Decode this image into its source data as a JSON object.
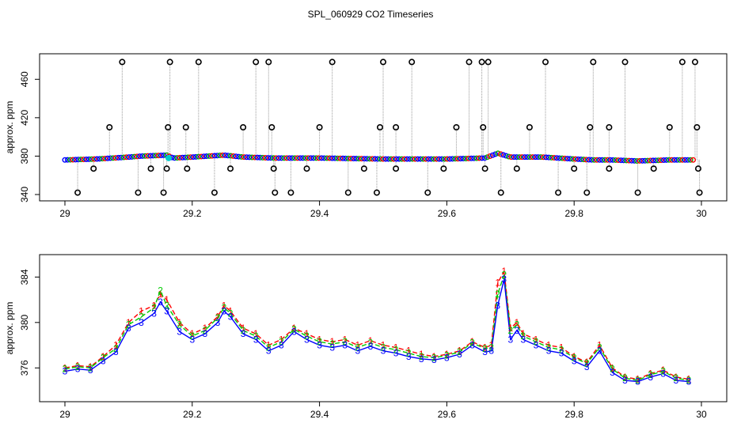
{
  "title": "SPL_060929  CO2 Timeseries",
  "chart_data": [
    {
      "type": "scatter",
      "title": "",
      "xlabel": "",
      "ylabel": "approx. ppm",
      "xlim": [
        29.0,
        30.0
      ],
      "ylim": [
        340,
        480
      ],
      "xticks": [
        29.0,
        29.2,
        29.4,
        29.6,
        29.8,
        30.0
      ],
      "yticks": [
        340,
        380,
        420,
        460
      ],
      "grid": false,
      "legend": "none",
      "baseline": {
        "x": [
          29.0,
          29.05,
          29.1,
          29.12,
          29.16,
          29.17,
          29.2,
          29.25,
          29.28,
          29.33,
          29.4,
          29.5,
          29.6,
          29.66,
          29.68,
          29.7,
          29.75,
          29.8,
          29.83,
          29.86,
          29.9,
          29.95,
          29.99
        ],
        "y": [
          376,
          377,
          379,
          380,
          381,
          378,
          379,
          381,
          379,
          378,
          378,
          377,
          377,
          378,
          383,
          379,
          379,
          377,
          376,
          376,
          375,
          376,
          376
        ]
      },
      "spikes": [
        {
          "x": 29.02,
          "y": 342
        },
        {
          "x": 29.045,
          "y": 367
        },
        {
          "x": 29.07,
          "y": 410
        },
        {
          "x": 29.09,
          "y": 478
        },
        {
          "x": 29.115,
          "y": 342
        },
        {
          "x": 29.135,
          "y": 367
        },
        {
          "x": 29.155,
          "y": 342
        },
        {
          "x": 29.16,
          "y": 367
        },
        {
          "x": 29.162,
          "y": 410
        },
        {
          "x": 29.165,
          "y": 478
        },
        {
          "x": 29.19,
          "y": 410
        },
        {
          "x": 29.192,
          "y": 367
        },
        {
          "x": 29.21,
          "y": 478
        },
        {
          "x": 29.235,
          "y": 342
        },
        {
          "x": 29.26,
          "y": 367
        },
        {
          "x": 29.28,
          "y": 410
        },
        {
          "x": 29.3,
          "y": 478
        },
        {
          "x": 29.32,
          "y": 478
        },
        {
          "x": 29.325,
          "y": 410
        },
        {
          "x": 29.328,
          "y": 367
        },
        {
          "x": 29.33,
          "y": 342
        },
        {
          "x": 29.355,
          "y": 342
        },
        {
          "x": 29.38,
          "y": 367
        },
        {
          "x": 29.4,
          "y": 410
        },
        {
          "x": 29.42,
          "y": 478
        },
        {
          "x": 29.445,
          "y": 342
        },
        {
          "x": 29.47,
          "y": 367
        },
        {
          "x": 29.49,
          "y": 342
        },
        {
          "x": 29.495,
          "y": 410
        },
        {
          "x": 29.5,
          "y": 478
        },
        {
          "x": 29.52,
          "y": 410
        },
        {
          "x": 29.52,
          "y": 367
        },
        {
          "x": 29.545,
          "y": 478
        },
        {
          "x": 29.57,
          "y": 342
        },
        {
          "x": 29.595,
          "y": 367
        },
        {
          "x": 29.615,
          "y": 410
        },
        {
          "x": 29.635,
          "y": 478
        },
        {
          "x": 29.655,
          "y": 478
        },
        {
          "x": 29.657,
          "y": 410
        },
        {
          "x": 29.66,
          "y": 367
        },
        {
          "x": 29.665,
          "y": 478
        },
        {
          "x": 29.685,
          "y": 342
        },
        {
          "x": 29.71,
          "y": 367
        },
        {
          "x": 29.73,
          "y": 410
        },
        {
          "x": 29.755,
          "y": 478
        },
        {
          "x": 29.775,
          "y": 342
        },
        {
          "x": 29.8,
          "y": 367
        },
        {
          "x": 29.82,
          "y": 342
        },
        {
          "x": 29.825,
          "y": 410
        },
        {
          "x": 29.83,
          "y": 478
        },
        {
          "x": 29.855,
          "y": 410
        },
        {
          "x": 29.855,
          "y": 367
        },
        {
          "x": 29.88,
          "y": 478
        },
        {
          "x": 29.9,
          "y": 342
        },
        {
          "x": 29.925,
          "y": 367
        },
        {
          "x": 29.95,
          "y": 410
        },
        {
          "x": 29.97,
          "y": 478
        },
        {
          "x": 29.99,
          "y": 478
        },
        {
          "x": 29.993,
          "y": 410
        },
        {
          "x": 29.995,
          "y": 367
        },
        {
          "x": 29.997,
          "y": 342
        }
      ]
    },
    {
      "type": "line",
      "title": "",
      "xlabel": "",
      "ylabel": "approx. ppm",
      "xlim": [
        29.0,
        30.0
      ],
      "ylim": [
        374,
        385
      ],
      "xticks": [
        29.0,
        29.2,
        29.4,
        29.6,
        29.8,
        30.0
      ],
      "yticks": [
        376,
        380,
        384
      ],
      "grid": false,
      "legend": "none",
      "x": [
        29.0,
        29.02,
        29.04,
        29.06,
        29.08,
        29.1,
        29.12,
        29.14,
        29.15,
        29.16,
        29.18,
        29.2,
        29.22,
        29.24,
        29.25,
        29.26,
        29.28,
        29.3,
        29.32,
        29.34,
        29.36,
        29.38,
        29.4,
        29.42,
        29.44,
        29.46,
        29.48,
        29.5,
        29.52,
        29.54,
        29.56,
        29.58,
        29.6,
        29.62,
        29.64,
        29.66,
        29.67,
        29.68,
        29.69,
        29.7,
        29.71,
        29.72,
        29.74,
        29.76,
        29.78,
        29.8,
        29.82,
        29.84,
        29.86,
        29.88,
        29.9,
        29.92,
        29.94,
        29.96,
        29.98
      ],
      "series": [
        {
          "name": "1",
          "values": [
            376.0,
            376.2,
            376.1,
            377.0,
            378.0,
            380.0,
            381.0,
            381.5,
            382.5,
            382.0,
            380.0,
            379.0,
            379.5,
            380.5,
            381.5,
            381.0,
            379.5,
            379.0,
            378.0,
            378.5,
            379.5,
            379.0,
            378.5,
            378.3,
            378.5,
            378.0,
            378.4,
            378.0,
            377.8,
            377.5,
            377.2,
            377.0,
            377.2,
            377.5,
            378.3,
            377.8,
            378.0,
            383.5,
            384.5,
            379.5,
            380.0,
            379.0,
            378.5,
            378.0,
            377.8,
            377.0,
            376.5,
            378.0,
            376.0,
            375.2,
            375.0,
            375.5,
            375.8,
            375.2,
            375.0
          ]
        },
        {
          "name": "2",
          "values": [
            375.9,
            376.1,
            376.0,
            376.9,
            377.7,
            379.8,
            380.5,
            381.3,
            382.8,
            381.5,
            379.8,
            378.8,
            379.3,
            380.4,
            381.3,
            380.8,
            379.3,
            378.8,
            377.8,
            378.3,
            379.4,
            378.8,
            378.3,
            378.1,
            378.3,
            377.8,
            378.2,
            377.8,
            377.6,
            377.3,
            377.0,
            376.9,
            377.1,
            377.4,
            378.2,
            377.7,
            377.8,
            382.5,
            384.2,
            379.3,
            379.8,
            378.8,
            378.3,
            377.8,
            377.6,
            376.9,
            376.4,
            377.8,
            375.9,
            375.1,
            374.9,
            375.4,
            375.7,
            375.1,
            374.9
          ]
        },
        {
          "name": "3",
          "values": [
            375.7,
            375.9,
            375.8,
            376.6,
            377.4,
            379.5,
            380.0,
            380.8,
            381.8,
            381.0,
            379.2,
            378.5,
            379.0,
            380.0,
            381.0,
            380.5,
            379.0,
            378.5,
            377.5,
            378.0,
            379.2,
            378.5,
            378.0,
            377.8,
            378.0,
            377.5,
            377.9,
            377.5,
            377.3,
            377.0,
            376.8,
            376.7,
            376.9,
            377.2,
            378.0,
            377.4,
            377.5,
            381.5,
            383.8,
            378.5,
            379.3,
            378.5,
            378.0,
            377.5,
            377.3,
            376.6,
            376.1,
            377.5,
            375.6,
            374.9,
            374.8,
            375.2,
            375.5,
            374.9,
            374.8
          ]
        }
      ],
      "series_colors": [
        "#ff0000",
        "#00cc00",
        "#0000ff"
      ]
    }
  ]
}
